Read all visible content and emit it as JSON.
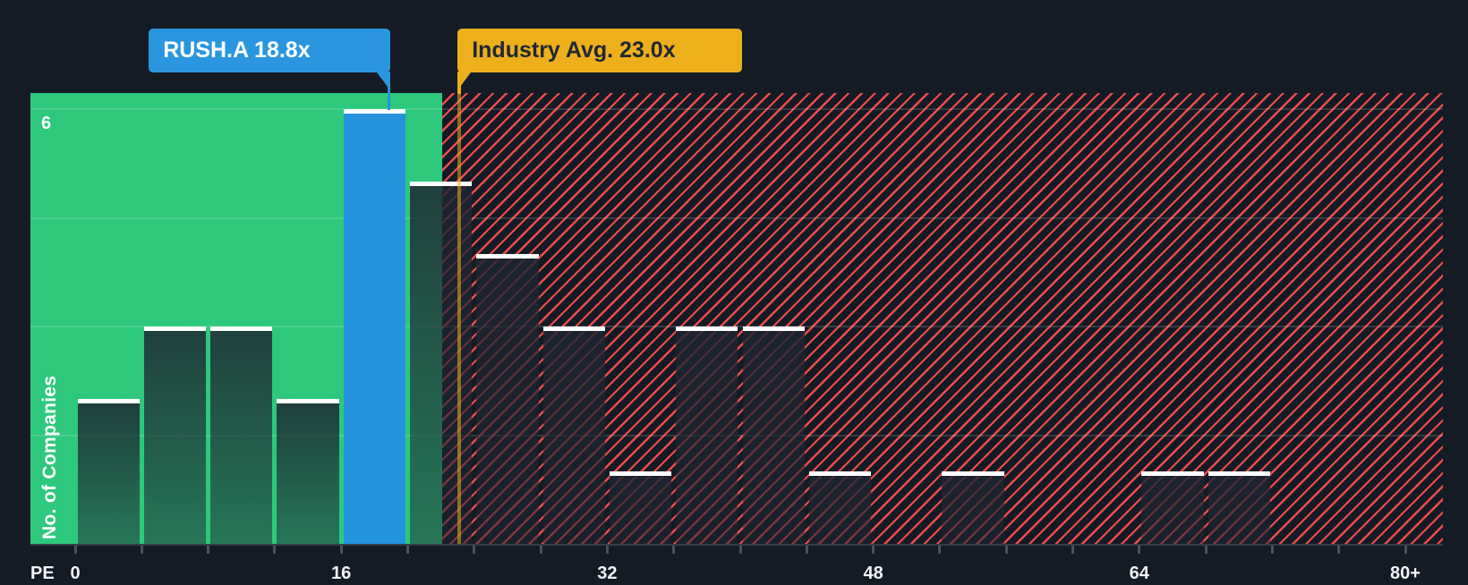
{
  "colors": {
    "background": "#141B24",
    "green_zone": "#2DC87C",
    "hatch_red": "#EE4B4D",
    "company_blue": "#2493DD",
    "industry_yellow": "#EDAF1C",
    "bar_cap_white": "#FFFFFF",
    "tooltip_text_dark": "#1E2733",
    "axis_text": "#F2F4F6"
  },
  "chart_data": {
    "type": "bar",
    "subtype": "histogram",
    "x_axis": {
      "prefix_label": "PE",
      "range": [
        0,
        80
      ],
      "minor_tick_step": 4,
      "tick_labels": [
        {
          "pe": 0,
          "label": "0"
        },
        {
          "pe": 16,
          "label": "16"
        },
        {
          "pe": 32,
          "label": "32"
        },
        {
          "pe": 48,
          "label": "48"
        },
        {
          "pe": 64,
          "label": "64"
        },
        {
          "pe": 80,
          "label": "80+"
        }
      ]
    },
    "y_axis": {
      "label": "No. of Companies",
      "top_tick_label": "6",
      "gridline_values": [
        1.5,
        3,
        4.5,
        6
      ],
      "range": [
        0,
        6.2
      ],
      "grid": true
    },
    "bins": [
      {
        "start": 0,
        "end": 4,
        "count": 2
      },
      {
        "start": 4,
        "end": 8,
        "count": 3
      },
      {
        "start": 8,
        "end": 12,
        "count": 3
      },
      {
        "start": 12,
        "end": 16,
        "count": 2
      },
      {
        "start": 16,
        "end": 20,
        "count": 6,
        "highlight": "company"
      },
      {
        "start": 20,
        "end": 24,
        "count": 5
      },
      {
        "start": 24,
        "end": 28,
        "count": 4
      },
      {
        "start": 28,
        "end": 32,
        "count": 3
      },
      {
        "start": 32,
        "end": 36,
        "count": 1
      },
      {
        "start": 36,
        "end": 40,
        "count": 3
      },
      {
        "start": 40,
        "end": 44,
        "count": 3
      },
      {
        "start": 44,
        "end": 48,
        "count": 1
      },
      {
        "start": 48,
        "end": 52,
        "count": 0
      },
      {
        "start": 52,
        "end": 56,
        "count": 1
      },
      {
        "start": 56,
        "end": 60,
        "count": 0
      },
      {
        "start": 60,
        "end": 64,
        "count": 0
      },
      {
        "start": 64,
        "end": 68,
        "count": 1
      },
      {
        "start": 68,
        "end": 72,
        "count": 1
      },
      {
        "start": 72,
        "end": 76,
        "count": 0
      },
      {
        "start": 76,
        "end": 80,
        "count": 0
      }
    ],
    "markers": {
      "company": {
        "label": "RUSH.A 18.8x",
        "value": 18.8
      },
      "industry": {
        "label": "Industry Avg. 23.0x",
        "value": 23.0
      }
    },
    "zones": {
      "green_below_pe": 22.1,
      "hatched_above": true
    }
  }
}
